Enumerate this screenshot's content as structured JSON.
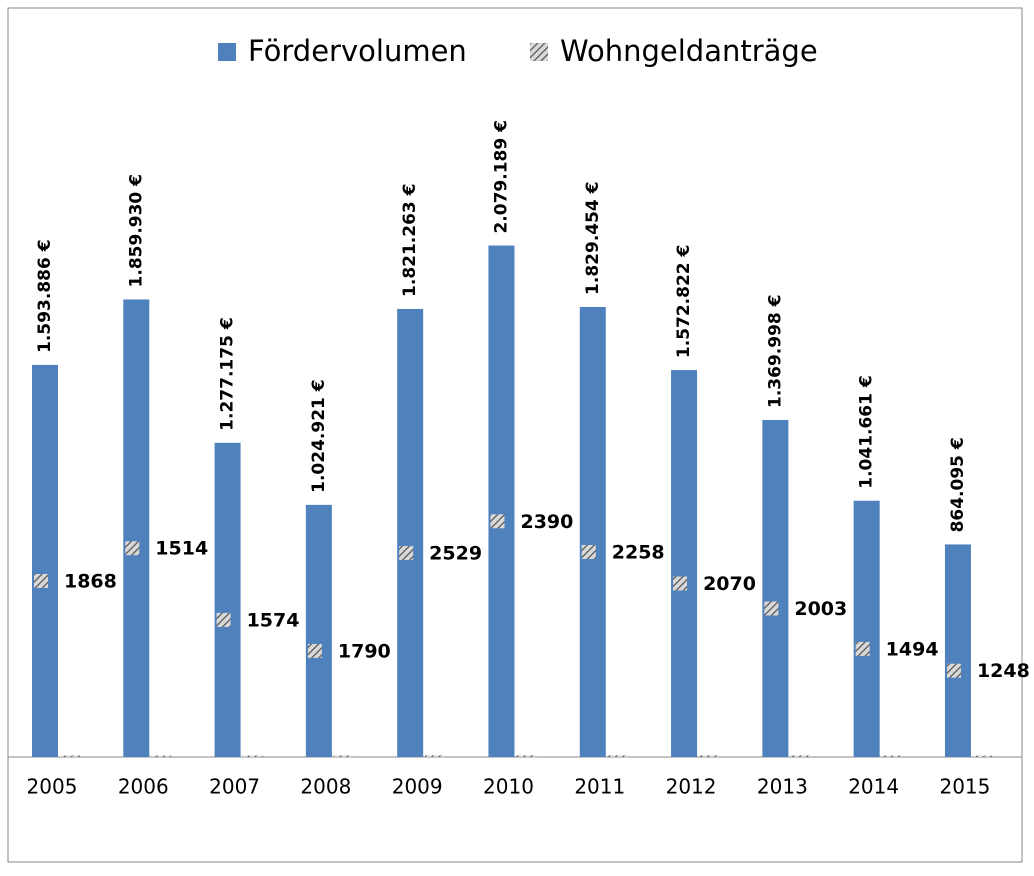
{
  "chart_data": {
    "type": "bar",
    "categories": [
      "2005",
      "2006",
      "2007",
      "2008",
      "2009",
      "2010",
      "2011",
      "2012",
      "2013",
      "2014",
      "2015"
    ],
    "series": [
      {
        "name": "Fördervolumen",
        "color": "#4f81bd",
        "values": [
          1593886,
          1859930,
          1277175,
          1024921,
          1821263,
          2079189,
          1829454,
          1572822,
          1369998,
          1041661,
          864095
        ],
        "value_labels": [
          "1.593.886 €",
          "1.859.930 €",
          "1.277.175 €",
          "1.024.921 €",
          "1.821.263 €",
          "2.079.189 €",
          "1.829.454 €",
          "1.572.822 €",
          "1.369.998 €",
          "1.041.661 €",
          "864.095 €"
        ]
      },
      {
        "name": "Wohngeldanträge",
        "color": "#a0a0a0",
        "values": [
          1868,
          1514,
          1574,
          1790,
          2529,
          2390,
          2258,
          2070,
          2003,
          1494,
          1248
        ]
      }
    ],
    "ylim": [
      0,
      3000000
    ],
    "legend": "top"
  }
}
